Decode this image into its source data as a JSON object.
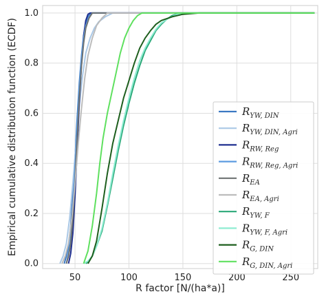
{
  "chart_data": {
    "type": "line",
    "title": "",
    "xlabel": "R factor [N/(ha*a)]",
    "ylabel": "Empirical cumulative distribution function (ECDF)",
    "xlim": [
      20,
      275
    ],
    "ylim": [
      -0.02,
      1.03
    ],
    "xticks": [
      50,
      100,
      150,
      200,
      250
    ],
    "yticks": [
      0.0,
      0.2,
      0.4,
      0.6,
      0.8,
      1.0
    ],
    "xtick_labels": [
      "50",
      "100",
      "150",
      "200",
      "250"
    ],
    "ytick_labels": [
      "0.0",
      "0.2",
      "0.4",
      "0.6",
      "0.8",
      "1.0"
    ],
    "grid": true,
    "legend_position": "right",
    "series": [
      {
        "name": "R_YW,DIN",
        "main": "R",
        "sub": "YW, DIN",
        "color": "#3a78c2",
        "points": [
          [
            40,
            0
          ],
          [
            42,
            0.03
          ],
          [
            44,
            0.07
          ],
          [
            46,
            0.15
          ],
          [
            48,
            0.27
          ],
          [
            50,
            0.42
          ],
          [
            52,
            0.58
          ],
          [
            54,
            0.72
          ],
          [
            56,
            0.83
          ],
          [
            58,
            0.91
          ],
          [
            60,
            0.96
          ],
          [
            62,
            0.985
          ],
          [
            65,
            1.0
          ],
          [
            272,
            1.0
          ]
        ]
      },
      {
        "name": "R_YW,DIN,Agri",
        "main": "R",
        "sub": "YW, DIN, Agri",
        "color": "#aac8e6",
        "points": [
          [
            36,
            0
          ],
          [
            39,
            0.03
          ],
          [
            42,
            0.08
          ],
          [
            45,
            0.18
          ],
          [
            48,
            0.32
          ],
          [
            51,
            0.48
          ],
          [
            54,
            0.63
          ],
          [
            57,
            0.75
          ],
          [
            60,
            0.84
          ],
          [
            64,
            0.9
          ],
          [
            68,
            0.94
          ],
          [
            72,
            0.965
          ],
          [
            78,
            0.985
          ],
          [
            85,
            1.0
          ],
          [
            272,
            1.0
          ]
        ]
      },
      {
        "name": "R_RW,Reg",
        "main": "R",
        "sub": "RW, Reg",
        "color": "#1f2f8f",
        "points": [
          [
            44,
            0
          ],
          [
            46,
            0.04
          ],
          [
            48,
            0.12
          ],
          [
            50,
            0.27
          ],
          [
            52,
            0.46
          ],
          [
            54,
            0.64
          ],
          [
            56,
            0.8
          ],
          [
            58,
            0.91
          ],
          [
            60,
            0.97
          ],
          [
            62,
            0.995
          ],
          [
            64,
            1.0
          ],
          [
            272,
            1.0
          ]
        ]
      },
      {
        "name": "R_RW,Reg,Agri",
        "main": "R",
        "sub": "RW, Reg, Agri",
        "color": "#5b9be0",
        "points": [
          [
            42,
            0
          ],
          [
            44,
            0.04
          ],
          [
            46,
            0.1
          ],
          [
            48,
            0.22
          ],
          [
            50,
            0.38
          ],
          [
            52,
            0.55
          ],
          [
            54,
            0.7
          ],
          [
            56,
            0.82
          ],
          [
            58,
            0.9
          ],
          [
            60,
            0.95
          ],
          [
            63,
            0.985
          ],
          [
            66,
            1.0
          ],
          [
            272,
            1.0
          ]
        ]
      },
      {
        "name": "R_EA",
        "main": "R",
        "sub": "EA",
        "color": "#6e7272",
        "points": [
          [
            42,
            0
          ],
          [
            44,
            0.03
          ],
          [
            46,
            0.08
          ],
          [
            48,
            0.18
          ],
          [
            50,
            0.33
          ],
          [
            52,
            0.5
          ],
          [
            54,
            0.66
          ],
          [
            56,
            0.79
          ],
          [
            58,
            0.88
          ],
          [
            60,
            0.94
          ],
          [
            63,
            0.98
          ],
          [
            66,
            1.0
          ],
          [
            272,
            1.0
          ]
        ]
      },
      {
        "name": "R_EA,Agri",
        "main": "R",
        "sub": "EA, Agri",
        "color": "#bcbcbc",
        "points": [
          [
            38,
            0
          ],
          [
            41,
            0.03
          ],
          [
            44,
            0.08
          ],
          [
            47,
            0.18
          ],
          [
            50,
            0.32
          ],
          [
            53,
            0.48
          ],
          [
            56,
            0.62
          ],
          [
            59,
            0.74
          ],
          [
            62,
            0.83
          ],
          [
            66,
            0.9
          ],
          [
            70,
            0.95
          ],
          [
            75,
            0.98
          ],
          [
            80,
            1.0
          ],
          [
            272,
            1.0
          ]
        ]
      },
      {
        "name": "R_YW,F",
        "main": "R",
        "sub": "YW, F",
        "color": "#2aa878",
        "points": [
          [
            60,
            0
          ],
          [
            63,
            0.01
          ],
          [
            66,
            0.03
          ],
          [
            70,
            0.07
          ],
          [
            75,
            0.13
          ],
          [
            80,
            0.23
          ],
          [
            85,
            0.34
          ],
          [
            90,
            0.45
          ],
          [
            95,
            0.55
          ],
          [
            100,
            0.64
          ],
          [
            105,
            0.72
          ],
          [
            110,
            0.79
          ],
          [
            115,
            0.85
          ],
          [
            120,
            0.89
          ],
          [
            125,
            0.93
          ],
          [
            130,
            0.955
          ],
          [
            135,
            0.975
          ],
          [
            140,
            0.99
          ],
          [
            148,
            1.0
          ],
          [
            272,
            1.0
          ]
        ]
      },
      {
        "name": "R_YW,F,Agri",
        "main": "R",
        "sub": "YW, F, Agri",
        "color": "#8eecd2",
        "points": [
          [
            58,
            0
          ],
          [
            62,
            0.01
          ],
          [
            66,
            0.03
          ],
          [
            70,
            0.07
          ],
          [
            75,
            0.14
          ],
          [
            80,
            0.24
          ],
          [
            85,
            0.36
          ],
          [
            90,
            0.47
          ],
          [
            95,
            0.57
          ],
          [
            100,
            0.66
          ],
          [
            105,
            0.74
          ],
          [
            110,
            0.81
          ],
          [
            115,
            0.86
          ],
          [
            120,
            0.9
          ],
          [
            125,
            0.935
          ],
          [
            130,
            0.96
          ],
          [
            137,
            0.98
          ],
          [
            145,
            0.995
          ],
          [
            155,
            1.0
          ],
          [
            272,
            1.0
          ]
        ]
      },
      {
        "name": "R_G,DIN",
        "main": "R",
        "sub": "G, DIN",
        "color": "#1d5e1d",
        "points": [
          [
            62,
            0
          ],
          [
            66,
            0.03
          ],
          [
            70,
            0.09
          ],
          [
            75,
            0.22
          ],
          [
            80,
            0.36
          ],
          [
            85,
            0.48
          ],
          [
            90,
            0.57
          ],
          [
            95,
            0.66
          ],
          [
            100,
            0.73
          ],
          [
            105,
            0.8
          ],
          [
            110,
            0.86
          ],
          [
            115,
            0.9
          ],
          [
            120,
            0.93
          ],
          [
            125,
            0.955
          ],
          [
            130,
            0.97
          ],
          [
            140,
            0.985
          ],
          [
            150,
            0.995
          ],
          [
            165,
            1.0
          ],
          [
            272,
            1.0
          ]
        ]
      },
      {
        "name": "R_G,DIN,Agri",
        "main": "R",
        "sub": "G, DIN, Agri",
        "color": "#5ee05e",
        "points": [
          [
            58,
            0
          ],
          [
            62,
            0.05
          ],
          [
            66,
            0.15
          ],
          [
            70,
            0.28
          ],
          [
            73,
            0.4
          ],
          [
            76,
            0.5
          ],
          [
            80,
            0.6
          ],
          [
            84,
            0.68
          ],
          [
            88,
            0.76
          ],
          [
            92,
            0.84
          ],
          [
            96,
            0.9
          ],
          [
            100,
            0.94
          ],
          [
            104,
            0.97
          ],
          [
            108,
            0.99
          ],
          [
            112,
            1.0
          ],
          [
            272,
            1.0
          ]
        ]
      }
    ]
  }
}
